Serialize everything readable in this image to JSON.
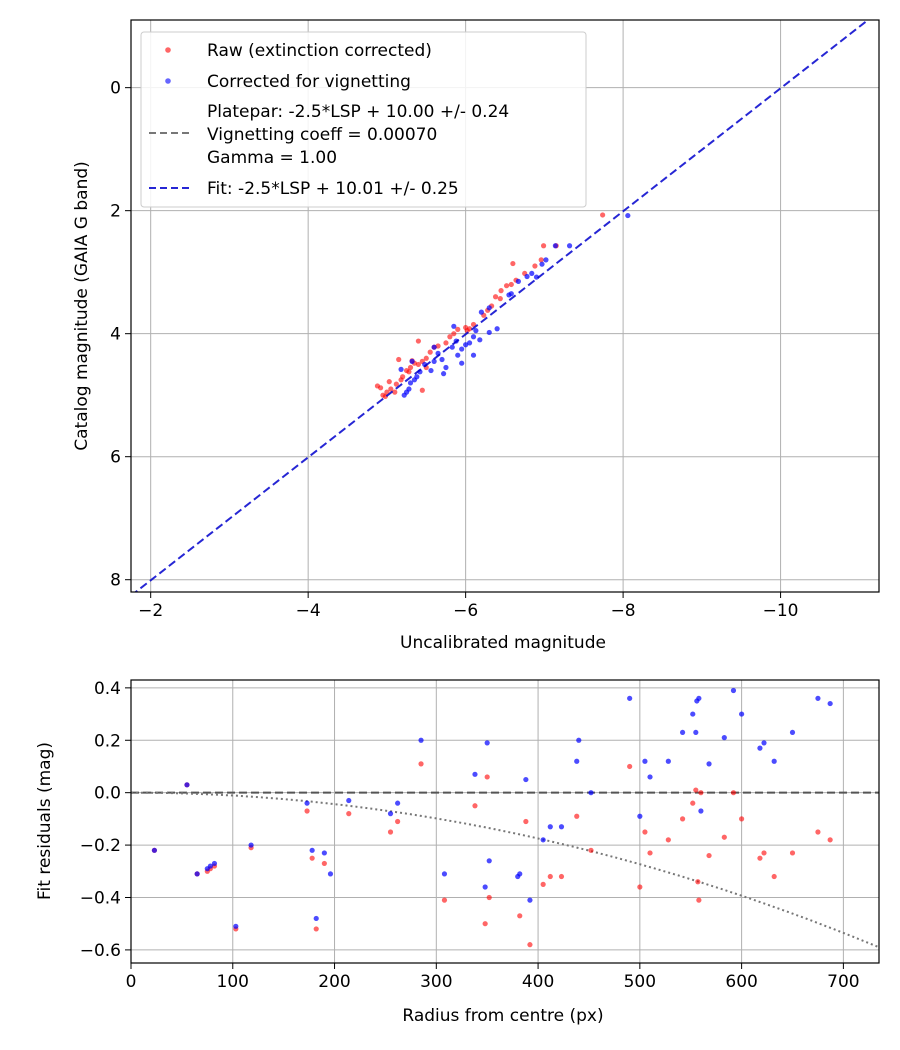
{
  "colors": {
    "raw": "#ff0000",
    "corrected": "#0000ff",
    "fit": "#0000cc",
    "vignetting": "#777777",
    "zero": "#555555",
    "grid": "#b0b0b0"
  },
  "chart_data": [
    {
      "type": "scatter",
      "xlabel": "Uncalibrated magnitude",
      "ylabel": "Catalog magnitude (GAIA G band)",
      "xlim": [
        -1.75,
        -11.25
      ],
      "ylim": [
        8.2,
        -1.1
      ],
      "xticks": [
        -2,
        -4,
        -6,
        -8,
        -10
      ],
      "xtick_labels": [
        "−2",
        "−4",
        "−6",
        "−8",
        "−10"
      ],
      "yticks": [
        0,
        2,
        4,
        6,
        8
      ],
      "ytick_labels": [
        "0",
        "2",
        "4",
        "6",
        "8"
      ],
      "grid": true,
      "legend": {
        "location": "top-left",
        "raw": "Raw (extinction corrected)",
        "corrected": "Corrected for vignetting",
        "platepar_lines": [
          "Platepar: -2.5*LSP + 10.00 +/- 0.24",
          "Vignetting coeff = 0.00070",
          "Gamma = 1.00"
        ],
        "fit": "Fit: -2.5*LSP + 10.01 +/- 0.25"
      },
      "fit_line": {
        "intercept": 10.01,
        "slope_lsp": -2.5
      },
      "series": [
        {
          "name": "Raw (extinction corrected)",
          "x": [
            -7.74,
            -6.99,
            -7.15,
            -6.96,
            -6.88,
            -6.75,
            -6.64,
            -6.58,
            -6.52,
            -6.45,
            -6.38,
            -6.33,
            -6.28,
            -6.44,
            -6.23,
            -6.1,
            -6.05,
            -6.0,
            -5.9,
            -5.85,
            -5.8,
            -5.75,
            -5.65,
            -5.6,
            -5.55,
            -5.5,
            -5.45,
            -5.4,
            -5.35,
            -5.3,
            -5.25,
            -5.2,
            -5.18,
            -5.12,
            -5.05,
            -5.0,
            -4.95,
            -5.03,
            -5.1,
            -4.98,
            -4.92,
            -4.88,
            -5.28,
            -5.32,
            -5.5,
            -5.45,
            -5.15,
            -5.4,
            -6.02,
            -6.6
          ],
          "y": [
            2.07,
            2.57,
            2.57,
            2.8,
            2.9,
            3.02,
            3.13,
            3.2,
            3.22,
            3.3,
            3.4,
            3.55,
            3.62,
            3.43,
            3.7,
            3.85,
            3.92,
            3.9,
            3.93,
            4.0,
            4.05,
            4.15,
            4.2,
            4.22,
            4.3,
            4.4,
            4.45,
            4.5,
            4.48,
            4.55,
            4.6,
            4.7,
            4.75,
            4.82,
            4.9,
            4.95,
            5.0,
            4.78,
            4.95,
            5.02,
            4.88,
            4.85,
            4.62,
            4.44,
            4.55,
            4.92,
            4.42,
            4.12,
            3.95,
            2.86
          ]
        },
        {
          "name": "Corrected for vignetting",
          "x": [
            -8.06,
            -7.32,
            -7.14,
            -7.02,
            -6.97,
            -6.84,
            -6.78,
            -6.67,
            -6.58,
            -6.55,
            -6.3,
            -6.2,
            -6.13,
            -6.1,
            -6.18,
            -6.05,
            -6.0,
            -5.95,
            -5.9,
            -5.88,
            -5.83,
            -5.75,
            -5.7,
            -5.65,
            -5.6,
            -5.56,
            -5.48,
            -5.42,
            -5.38,
            -5.35,
            -5.3,
            -5.28,
            -5.25,
            -5.22,
            -5.18,
            -5.32,
            -5.6,
            -6.4,
            -6.1,
            -5.85,
            -5.72,
            -5.95,
            -6.3,
            -6.9
          ],
          "y": [
            2.08,
            2.57,
            2.57,
            2.8,
            2.87,
            3.02,
            3.07,
            3.15,
            3.35,
            3.37,
            3.58,
            3.65,
            3.95,
            4.05,
            4.1,
            4.15,
            4.18,
            4.25,
            4.35,
            4.12,
            4.22,
            4.55,
            4.42,
            4.32,
            4.45,
            4.6,
            4.5,
            4.62,
            4.7,
            4.75,
            4.8,
            4.9,
            4.95,
            5.0,
            4.58,
            4.45,
            4.22,
            3.92,
            4.35,
            3.88,
            4.65,
            4.48,
            3.98,
            3.08
          ]
        }
      ]
    },
    {
      "type": "scatter",
      "xlabel": "Radius from centre (px)",
      "ylabel": "Fit residuals (mag)",
      "xlim": [
        0,
        735
      ],
      "ylim": [
        -0.65,
        0.43
      ],
      "xticks": [
        0,
        100,
        200,
        300,
        400,
        500,
        600,
        700
      ],
      "xtick_labels": [
        "0",
        "100",
        "200",
        "300",
        "400",
        "500",
        "600",
        "700"
      ],
      "yticks": [
        0.4,
        0.2,
        0.0,
        -0.2,
        -0.4,
        -0.6
      ],
      "ytick_labels": [
        "0.4",
        "0.2",
        "0.0",
        "−0.2",
        "−0.4",
        "−0.6"
      ],
      "grid": true,
      "vignetting_curve": {
        "x_end": 735,
        "y_end": -0.59
      },
      "series": [
        {
          "name": "Raw (extinction corrected)",
          "x": [
            23,
            55,
            65,
            75,
            78,
            82,
            103,
            118,
            173,
            178,
            182,
            190,
            214,
            255,
            262,
            285,
            308,
            338,
            348,
            350,
            352,
            382,
            388,
            392,
            405,
            412,
            423,
            438,
            452,
            490,
            500,
            505,
            510,
            528,
            542,
            552,
            555,
            558,
            560,
            568,
            583,
            592,
            600,
            618,
            622,
            632,
            650,
            675,
            687,
            557
          ],
          "y": [
            -0.22,
            0.03,
            -0.31,
            -0.3,
            -0.29,
            -0.28,
            -0.52,
            -0.21,
            -0.07,
            -0.25,
            -0.52,
            -0.27,
            -0.08,
            -0.15,
            -0.11,
            0.11,
            -0.41,
            -0.05,
            -0.5,
            0.06,
            -0.4,
            -0.47,
            -0.11,
            -0.58,
            -0.35,
            -0.32,
            -0.32,
            -0.09,
            -0.22,
            0.1,
            -0.36,
            -0.15,
            -0.23,
            -0.18,
            -0.1,
            -0.04,
            0.01,
            -0.41,
            0.0,
            -0.24,
            -0.17,
            0.0,
            -0.1,
            -0.25,
            -0.23,
            -0.32,
            -0.23,
            -0.15,
            -0.18,
            -0.34
          ]
        },
        {
          "name": "Corrected for vignetting",
          "x": [
            23,
            55,
            65,
            75,
            78,
            82,
            103,
            118,
            173,
            178,
            182,
            190,
            196,
            214,
            255,
            262,
            285,
            308,
            338,
            348,
            350,
            352,
            380,
            382,
            388,
            392,
            405,
            412,
            423,
            438,
            440,
            452,
            490,
            500,
            505,
            510,
            528,
            542,
            552,
            555,
            556,
            558,
            560,
            568,
            583,
            592,
            600,
            618,
            622,
            632,
            650,
            675,
            687
          ],
          "y": [
            -0.22,
            0.03,
            -0.31,
            -0.29,
            -0.28,
            -0.27,
            -0.51,
            -0.2,
            -0.04,
            -0.22,
            -0.48,
            -0.23,
            -0.31,
            -0.03,
            -0.08,
            -0.04,
            0.2,
            -0.31,
            0.07,
            -0.36,
            0.19,
            -0.26,
            -0.32,
            -0.31,
            0.05,
            -0.41,
            -0.18,
            -0.13,
            -0.13,
            0.12,
            0.2,
            0.0,
            0.36,
            -0.09,
            0.12,
            0.06,
            0.12,
            0.23,
            0.3,
            0.23,
            0.35,
            0.36,
            -0.07,
            0.11,
            0.21,
            0.39,
            0.3,
            0.17,
            0.19,
            0.12,
            0.23,
            0.36,
            0.34
          ]
        }
      ]
    }
  ]
}
